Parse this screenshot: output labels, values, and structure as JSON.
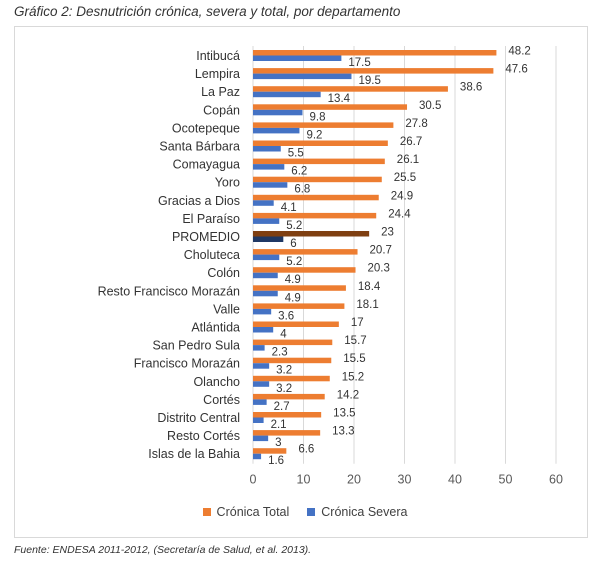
{
  "title": "Gráfico 2: Desnutrición crónica, severa y total, por departamento",
  "source": "Fuente: ENDESA 2011-2012, (Secretaría de Salud, et al. 2013).",
  "colors": {
    "total": "#ED7D31",
    "severa": "#4472C4",
    "promedio_total": "#7F3F11",
    "promedio_severa": "#1F3864",
    "grid": "#d9d9d9"
  },
  "chart_data": {
    "type": "bar",
    "orientation": "horizontal",
    "title": "Gráfico 2: Desnutrición crónica, severa y total, por departamento",
    "xlim": [
      0,
      60
    ],
    "xticks": [
      0,
      10,
      20,
      30,
      40,
      50,
      60
    ],
    "grid": true,
    "legend_position": "bottom",
    "categories": [
      "Intibucá",
      "Lempira",
      "La Paz",
      "Copán",
      "Ocotepeque",
      "Santa Bárbara",
      "Comayagua",
      "Yoro",
      "Gracias a Dios",
      "El Paraíso",
      "PROMEDIO",
      "Choluteca",
      "Colón",
      "Resto Francisco Morazán",
      "Valle",
      "Atlántida",
      "San Pedro Sula",
      "Francisco Morazán",
      "Olancho",
      "Cortés",
      "Distrito Central",
      "Resto Cortés",
      "Islas de la Bahia"
    ],
    "highlight_category": "PROMEDIO",
    "series": [
      {
        "name": "Crónica Total",
        "values": [
          48.2,
          47.6,
          38.6,
          30.5,
          27.8,
          26.7,
          26.1,
          25.5,
          24.9,
          24.4,
          23,
          20.7,
          20.3,
          18.4,
          18.1,
          17,
          15.7,
          15.5,
          15.2,
          14.2,
          13.5,
          13.3,
          6.6
        ]
      },
      {
        "name": "Crónica Severa",
        "values": [
          17.5,
          19.5,
          13.4,
          9.8,
          9.2,
          5.5,
          6.2,
          6.8,
          4.1,
          5.2,
          6,
          5.2,
          4.9,
          4.9,
          3.6,
          4,
          2.3,
          3.2,
          3.2,
          2.7,
          2.1,
          3,
          1.6
        ]
      }
    ]
  }
}
